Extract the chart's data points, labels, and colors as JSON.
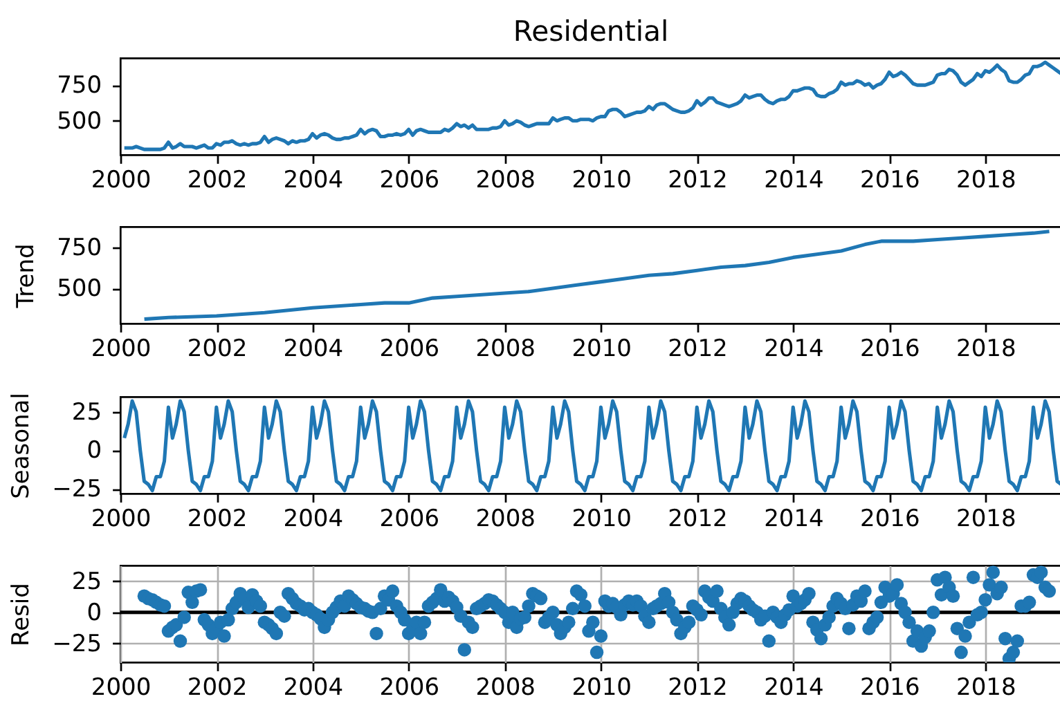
{
  "chart_data": [
    {
      "type": "line",
      "title": "Residential",
      "color": "#1f77b4",
      "xlim": [
        "2000-01-01",
        "2019-08-01"
      ],
      "xticks": [
        "2000",
        "2002",
        "2004",
        "2006",
        "2008",
        "2010",
        "2012",
        "2014",
        "2016",
        "2018"
      ],
      "ylim": [
        262,
        939
      ],
      "yticks": [
        500,
        750
      ],
      "x": [
        "2000-01-31",
        "2000-02-29",
        "2000-03-31",
        "2000-04-30",
        "2000-05-31",
        "2000-06-30",
        "2000-07-31",
        "2000-08-31",
        "2000-09-30",
        "2000-10-31",
        "2000-11-30",
        "2000-12-31",
        "2001-01-31",
        "2001-02-28",
        "2001-03-31",
        "2001-04-30",
        "2001-05-31",
        "2001-06-30",
        "2001-07-31",
        "2001-08-31",
        "2001-09-30",
        "2001-10-31",
        "2001-11-30",
        "2001-12-31",
        "2002-01-31",
        "2002-02-28",
        "2002-03-31",
        "2002-04-30",
        "2002-05-31",
        "2002-06-30",
        "2002-07-31",
        "2002-08-31",
        "2002-09-30",
        "2002-10-31",
        "2002-11-30",
        "2002-12-31",
        "2003-01-31",
        "2003-02-28",
        "2003-03-31",
        "2003-04-30",
        "2003-05-31",
        "2003-06-30",
        "2003-07-31",
        "2003-08-31",
        "2003-09-30",
        "2003-10-31",
        "2003-11-30",
        "2003-12-31",
        "2004-01-31",
        "2004-02-29",
        "2004-03-31",
        "2004-04-30",
        "2004-05-31",
        "2004-06-30",
        "2004-07-31",
        "2004-08-31",
        "2004-09-30",
        "2004-10-31",
        "2004-11-30",
        "2004-12-31",
        "2005-01-31",
        "2005-02-28",
        "2005-03-31",
        "2005-04-30",
        "2005-05-31",
        "2005-06-30",
        "2005-07-31",
        "2005-08-31",
        "2005-09-30",
        "2005-10-31",
        "2005-11-30",
        "2005-12-31",
        "2006-01-31",
        "2006-02-28",
        "2006-03-31",
        "2006-04-30",
        "2006-05-31",
        "2006-06-30",
        "2006-07-31",
        "2006-08-31",
        "2006-09-30",
        "2006-10-31",
        "2006-11-30",
        "2006-12-31",
        "2007-01-31",
        "2007-02-28",
        "2007-03-31",
        "2007-04-30",
        "2007-05-31",
        "2007-06-30",
        "2007-07-31",
        "2007-08-31",
        "2007-09-30",
        "2007-10-31",
        "2007-11-30",
        "2007-12-31",
        "2008-01-31",
        "2008-02-29",
        "2008-03-31",
        "2008-04-30",
        "2008-05-31",
        "2008-06-30",
        "2008-07-31",
        "2008-08-31",
        "2008-09-30",
        "2008-10-31",
        "2008-11-30",
        "2008-12-31",
        "2009-01-31",
        "2009-02-28",
        "2009-03-31",
        "2009-04-30",
        "2009-05-31",
        "2009-06-30",
        "2009-07-31",
        "2009-08-31",
        "2009-09-30",
        "2009-10-31",
        "2009-11-30",
        "2009-12-31",
        "2010-01-31",
        "2010-02-28",
        "2010-03-31",
        "2010-04-30",
        "2010-05-31",
        "2010-06-30",
        "2010-07-31",
        "2010-08-31",
        "2010-09-30",
        "2010-10-31",
        "2010-11-30",
        "2010-12-31",
        "2011-01-31",
        "2011-02-28",
        "2011-03-31",
        "2011-04-30",
        "2011-05-31",
        "2011-06-30",
        "2011-07-31",
        "2011-08-31",
        "2011-09-30",
        "2011-10-31",
        "2011-11-30",
        "2011-12-31",
        "2012-01-31",
        "2012-02-29",
        "2012-03-31",
        "2012-04-30",
        "2012-05-31",
        "2012-06-30",
        "2012-07-31",
        "2012-08-31",
        "2012-09-30",
        "2012-10-31",
        "2012-11-30",
        "2012-12-31",
        "2013-01-31",
        "2013-02-28",
        "2013-03-31",
        "2013-04-30",
        "2013-05-31",
        "2013-06-30",
        "2013-07-31",
        "2013-08-31",
        "2013-09-30",
        "2013-10-31",
        "2013-11-30",
        "2013-12-31",
        "2014-01-31",
        "2014-02-28",
        "2014-03-31",
        "2014-04-30",
        "2014-05-31",
        "2014-06-30",
        "2014-07-31",
        "2014-08-31",
        "2014-09-30",
        "2014-10-31",
        "2014-11-30",
        "2014-12-31",
        "2015-01-31",
        "2015-02-28",
        "2015-03-31",
        "2015-04-30",
        "2015-05-31",
        "2015-06-30",
        "2015-07-31",
        "2015-08-31",
        "2015-09-30",
        "2015-10-31",
        "2015-11-30",
        "2015-12-31",
        "2016-01-31",
        "2016-02-29",
        "2016-03-31",
        "2016-04-30",
        "2016-05-31",
        "2016-06-30",
        "2016-07-31",
        "2016-08-31",
        "2016-09-30",
        "2016-10-31",
        "2016-11-30",
        "2016-12-31",
        "2017-01-31",
        "2017-02-28",
        "2017-03-31",
        "2017-04-30",
        "2017-05-31",
        "2017-06-30",
        "2017-07-31",
        "2017-08-31",
        "2017-09-30",
        "2017-10-31",
        "2017-11-30",
        "2017-12-31",
        "2018-01-31",
        "2018-02-28",
        "2018-03-31",
        "2018-04-30",
        "2018-05-31",
        "2018-06-30",
        "2018-07-31",
        "2018-08-31",
        "2018-09-30",
        "2018-10-31",
        "2018-11-30",
        "2018-12-31",
        "2019-01-31",
        "2019-02-28",
        "2019-03-31",
        "2019-04-30",
        "2019-05-31",
        "2019-06-30",
        "2019-07-31"
      ],
      "values": [
        310,
        310,
        310,
        320,
        310,
        300,
        300,
        300,
        300,
        300,
        310,
        350,
        310,
        320,
        340,
        320,
        320,
        320,
        310,
        320,
        330,
        310,
        310,
        340,
        330,
        350,
        350,
        360,
        340,
        330,
        340,
        330,
        340,
        340,
        350,
        390,
        350,
        370,
        380,
        370,
        360,
        340,
        360,
        350,
        360,
        360,
        370,
        410,
        380,
        400,
        410,
        400,
        380,
        370,
        370,
        380,
        380,
        390,
        400,
        440,
        410,
        430,
        440,
        430,
        390,
        390,
        400,
        400,
        410,
        400,
        410,
        440,
        400,
        430,
        440,
        430,
        420,
        420,
        420,
        420,
        440,
        430,
        450,
        480,
        460,
        470,
        450,
        470,
        440,
        440,
        440,
        440,
        450,
        450,
        460,
        500,
        470,
        480,
        500,
        490,
        470,
        460,
        470,
        480,
        480,
        480,
        480,
        520,
        500,
        510,
        520,
        520,
        500,
        500,
        510,
        510,
        510,
        500,
        520,
        530,
        530,
        570,
        580,
        580,
        560,
        530,
        540,
        550,
        560,
        560,
        570,
        600,
        580,
        610,
        620,
        620,
        600,
        580,
        570,
        560,
        560,
        570,
        590,
        640,
        610,
        630,
        660,
        660,
        630,
        620,
        610,
        600,
        610,
        620,
        640,
        680,
        660,
        670,
        680,
        680,
        650,
        630,
        620,
        640,
        650,
        650,
        670,
        710,
        710,
        720,
        730,
        730,
        720,
        680,
        670,
        670,
        690,
        700,
        720,
        770,
        750,
        760,
        760,
        780,
        770,
        750,
        760,
        730,
        750,
        760,
        790,
        840,
        810,
        820,
        840,
        820,
        790,
        760,
        750,
        750,
        750,
        760,
        770,
        820,
        830,
        830,
        860,
        850,
        820,
        770,
        750,
        770,
        790,
        830,
        810,
        850,
        840,
        860,
        890,
        860,
        840,
        780,
        770,
        770,
        790,
        820,
        830,
        880,
        880,
        890,
        910,
        890,
        870,
        850,
        830
      ]
    },
    {
      "type": "line",
      "ylabel": "Trend",
      "color": "#1f77b4",
      "xlim": [
        "2000-01-01",
        "2019-08-01"
      ],
      "xticks": [
        "2000",
        "2002",
        "2004",
        "2006",
        "2008",
        "2010",
        "2012",
        "2014",
        "2016",
        "2018"
      ],
      "ylim": [
        283,
        879
      ],
      "yticks": [
        500,
        750
      ],
      "x": [
        "2000-07",
        "2001-01",
        "2002-01",
        "2003-01",
        "2004-01",
        "2005-01",
        "2005-07",
        "2006-01",
        "2006-07",
        "2007-01",
        "2008-01",
        "2008-07",
        "2009-01",
        "2009-07",
        "2010-01",
        "2010-07",
        "2011-01",
        "2011-07",
        "2012-01",
        "2012-07",
        "2013-01",
        "2013-07",
        "2014-01",
        "2014-07",
        "2015-01",
        "2015-07",
        "2015-11",
        "2016-07",
        "2017-01",
        "2017-07",
        "2018-01",
        "2018-07",
        "2019-01",
        "2019-05"
      ],
      "values": [
        310,
        320,
        330,
        350,
        380,
        400,
        410,
        410,
        440,
        450,
        470,
        480,
        500,
        520,
        540,
        560,
        580,
        590,
        610,
        630,
        640,
        660,
        690,
        710,
        730,
        770,
        790,
        790,
        800,
        810,
        820,
        830,
        840,
        850
      ]
    },
    {
      "type": "line",
      "ylabel": "Seasonal",
      "color": "#1f77b4",
      "xlim": [
        "2000-01-01",
        "2019-08-01"
      ],
      "xticks": [
        "2000",
        "2002",
        "2004",
        "2006",
        "2008",
        "2010",
        "2012",
        "2014",
        "2016",
        "2018"
      ],
      "ylim": [
        -28,
        34.7
      ],
      "yticks": [
        {
          "value": -25,
          "label": "−25"
        },
        0,
        25
      ],
      "x": [
        "2000-01-31",
        "2000-02-29",
        "2000-03-31",
        "2000-04-30",
        "2000-05-31",
        "2000-06-30",
        "2000-07-31",
        "2000-08-31",
        "2000-09-30",
        "2000-10-31",
        "2000-11-30",
        "2000-12-31",
        "2001-01-31",
        "2001-02-28",
        "2001-03-31",
        "2001-04-30",
        "2001-05-31",
        "2001-06-30",
        "2001-07-31",
        "2001-08-31",
        "2001-09-30",
        "2001-10-31",
        "2001-11-30",
        "2001-12-31",
        "2002-01-31",
        "2002-02-28",
        "2002-03-31",
        "2002-04-30",
        "2002-05-31",
        "2002-06-30",
        "2002-07-31",
        "2002-08-31",
        "2002-09-30",
        "2002-10-31",
        "2002-11-30",
        "2002-12-31",
        "2003-01-31",
        "2003-02-28",
        "2003-03-31",
        "2003-04-30",
        "2003-05-31",
        "2003-06-30",
        "2003-07-31",
        "2003-08-31",
        "2003-09-30",
        "2003-10-31",
        "2003-11-30",
        "2003-12-31",
        "2004-01-31",
        "2004-02-29",
        "2004-03-31",
        "2004-04-30",
        "2004-05-31",
        "2004-06-30",
        "2004-07-31",
        "2004-08-31",
        "2004-09-30",
        "2004-10-31",
        "2004-11-30",
        "2004-12-31",
        "2005-01-31",
        "2005-02-28",
        "2005-03-31",
        "2005-04-30",
        "2005-05-31",
        "2005-06-30",
        "2005-07-31",
        "2005-08-31",
        "2005-09-30",
        "2005-10-31",
        "2005-11-30",
        "2005-12-31",
        "2006-01-31",
        "2006-02-28",
        "2006-03-31",
        "2006-04-30",
        "2006-05-31",
        "2006-06-30",
        "2006-07-31",
        "2006-08-31",
        "2006-09-30",
        "2006-10-31",
        "2006-11-30",
        "2006-12-31",
        "2007-01-31",
        "2007-02-28",
        "2007-03-31",
        "2007-04-30",
        "2007-05-31",
        "2007-06-30",
        "2007-07-31",
        "2007-08-31",
        "2007-09-30",
        "2007-10-31",
        "2007-11-30",
        "2007-12-31",
        "2008-01-31",
        "2008-02-29",
        "2008-03-31",
        "2008-04-30",
        "2008-05-31",
        "2008-06-30",
        "2008-07-31",
        "2008-08-31",
        "2008-09-30",
        "2008-10-31",
        "2008-11-30",
        "2008-12-31",
        "2009-01-31",
        "2009-02-28",
        "2009-03-31",
        "2009-04-30",
        "2009-05-31",
        "2009-06-30",
        "2009-07-31",
        "2009-08-31",
        "2009-09-30",
        "2009-10-31",
        "2009-11-30",
        "2009-12-31",
        "2010-01-31",
        "2010-02-28",
        "2010-03-31",
        "2010-04-30",
        "2010-05-31",
        "2010-06-30",
        "2010-07-31",
        "2010-08-31",
        "2010-09-30",
        "2010-10-31",
        "2010-11-30",
        "2010-12-31",
        "2011-01-31",
        "2011-02-28",
        "2011-03-31",
        "2011-04-30",
        "2011-05-31",
        "2011-06-30",
        "2011-07-31",
        "2011-08-31",
        "2011-09-30",
        "2011-10-31",
        "2011-11-30",
        "2011-12-31",
        "2012-01-31",
        "2012-02-29",
        "2012-03-31",
        "2012-04-30",
        "2012-05-31",
        "2012-06-30",
        "2012-07-31",
        "2012-08-31",
        "2012-09-30",
        "2012-10-31",
        "2012-11-30",
        "2012-12-31",
        "2013-01-31",
        "2013-02-28",
        "2013-03-31",
        "2013-04-30",
        "2013-05-31",
        "2013-06-30",
        "2013-07-31",
        "2013-08-31",
        "2013-09-30",
        "2013-10-31",
        "2013-11-30",
        "2013-12-31",
        "2014-01-31",
        "2014-02-28",
        "2014-03-31",
        "2014-04-30",
        "2014-05-31",
        "2014-06-30",
        "2014-07-31",
        "2014-08-31",
        "2014-09-30",
        "2014-10-31",
        "2014-11-30",
        "2014-12-31",
        "2015-01-31",
        "2015-02-28",
        "2015-03-31",
        "2015-04-30",
        "2015-05-31",
        "2015-06-30",
        "2015-07-31",
        "2015-08-31",
        "2015-09-30",
        "2015-10-31",
        "2015-11-30",
        "2015-12-31",
        "2016-01-31",
        "2016-02-29",
        "2016-03-31",
        "2016-04-30",
        "2016-05-31",
        "2016-06-30",
        "2016-07-31",
        "2016-08-31",
        "2016-09-30",
        "2016-10-31",
        "2016-11-30",
        "2016-12-31",
        "2017-01-31",
        "2017-02-28",
        "2017-03-31",
        "2017-04-30",
        "2017-05-31",
        "2017-06-30",
        "2017-07-31",
        "2017-08-31",
        "2017-09-30",
        "2017-10-31",
        "2017-11-30",
        "2017-12-31",
        "2018-01-31",
        "2018-02-28",
        "2018-03-31",
        "2018-04-30",
        "2018-05-31",
        "2018-06-30",
        "2018-07-31",
        "2018-08-31",
        "2018-09-30",
        "2018-10-31",
        "2018-11-30",
        "2018-12-31",
        "2019-01-31",
        "2019-02-28",
        "2019-03-31",
        "2019-04-30",
        "2019-05-31",
        "2019-06-30",
        "2019-07-31"
      ],
      "values": [
        8,
        17,
        32,
        25,
        0,
        -20,
        -22,
        -26,
        -17,
        -17,
        -7,
        28,
        8,
        17,
        32,
        25,
        0,
        -20,
        -22,
        -26,
        -17,
        -17,
        -7,
        28,
        8,
        17,
        32,
        25,
        0,
        -20,
        -22,
        -26,
        -17,
        -17,
        -7,
        28,
        8,
        17,
        32,
        25,
        0,
        -20,
        -22,
        -26,
        -17,
        -17,
        -7,
        28,
        8,
        17,
        32,
        25,
        0,
        -20,
        -22,
        -26,
        -17,
        -17,
        -7,
        28,
        8,
        17,
        32,
        25,
        0,
        -20,
        -22,
        -26,
        -17,
        -17,
        -7,
        28,
        8,
        17,
        32,
        25,
        0,
        -20,
        -22,
        -26,
        -17,
        -17,
        -7,
        28,
        8,
        17,
        32,
        25,
        0,
        -20,
        -22,
        -26,
        -17,
        -17,
        -7,
        28,
        8,
        17,
        32,
        25,
        0,
        -20,
        -22,
        -26,
        -17,
        -17,
        -7,
        28,
        8,
        17,
        32,
        25,
        0,
        -20,
        -22,
        -26,
        -17,
        -17,
        -7,
        28,
        8,
        17,
        32,
        25,
        0,
        -20,
        -22,
        -26,
        -17,
        -17,
        -7,
        28,
        8,
        17,
        32,
        25,
        0,
        -20,
        -22,
        -26,
        -17,
        -17,
        -7,
        28,
        8,
        17,
        32,
        25,
        0,
        -20,
        -22,
        -26,
        -17,
        -17,
        -7,
        28,
        8,
        17,
        32,
        25,
        0,
        -20,
        -22,
        -26,
        -17,
        -17,
        -7,
        28,
        8,
        17,
        32,
        25,
        0,
        -20,
        -22,
        -26,
        -17,
        -17,
        -7,
        28,
        8,
        17,
        32,
        25,
        0,
        -20,
        -22,
        -26,
        -17,
        -17,
        -7,
        28,
        8,
        17,
        32,
        25,
        0,
        -20,
        -22,
        -26,
        -17,
        -17,
        -7,
        28,
        8,
        17,
        32,
        25,
        0,
        -20,
        -22,
        -26,
        -17,
        -17,
        -7,
        28,
        8,
        17,
        32,
        25,
        0,
        -20,
        -22,
        -26,
        -17,
        -17,
        -7,
        28,
        8,
        17,
        32,
        25,
        0,
        -20,
        -22
      ]
    },
    {
      "type": "scatter",
      "ylabel": "Resid",
      "color": "#1f77b4",
      "marker": "circle",
      "grid": true,
      "xlim": [
        "2000-01-01",
        "2019-08-01"
      ],
      "xticks": [
        "2000",
        "2002",
        "2004",
        "2006",
        "2008",
        "2010",
        "2012",
        "2014",
        "2016",
        "2018"
      ],
      "ylim": [
        -40,
        37.5
      ],
      "yticks": [
        {
          "value": -25,
          "label": "−25"
        },
        0,
        25
      ],
      "ref_lines": [
        {
          "axis": "y",
          "value": 0,
          "color": "#000000"
        }
      ],
      "x": [
        "2000-06-30",
        "2000-07-31",
        "2000-08-31",
        "2000-09-30",
        "2000-10-31",
        "2000-11-30",
        "2000-12-31",
        "2001-01-31",
        "2001-02-28",
        "2001-03-31",
        "2001-04-30",
        "2001-05-31",
        "2001-06-30",
        "2001-07-31",
        "2001-08-31",
        "2001-09-30",
        "2001-10-31",
        "2001-11-30",
        "2001-12-31",
        "2002-01-31",
        "2002-02-28",
        "2002-03-31",
        "2002-04-30",
        "2002-05-31",
        "2002-06-30",
        "2002-07-31",
        "2002-08-31",
        "2002-09-30",
        "2002-10-31",
        "2002-11-30",
        "2002-12-31",
        "2003-01-31",
        "2003-02-28",
        "2003-03-31",
        "2003-04-30",
        "2003-05-31",
        "2003-06-30",
        "2003-07-31",
        "2003-08-31",
        "2003-09-30",
        "2003-10-31",
        "2003-11-30",
        "2003-12-31",
        "2004-01-31",
        "2004-02-29",
        "2004-03-31",
        "2004-04-30",
        "2004-05-31",
        "2004-06-30",
        "2004-07-31",
        "2004-08-31",
        "2004-09-30",
        "2004-10-31",
        "2004-11-30",
        "2004-12-31",
        "2005-01-31",
        "2005-02-28",
        "2005-03-31",
        "2005-04-30",
        "2005-05-31",
        "2005-06-30",
        "2005-07-31",
        "2005-08-31",
        "2005-09-30",
        "2005-10-31",
        "2005-11-30",
        "2005-12-31",
        "2006-01-31",
        "2006-02-28",
        "2006-03-31",
        "2006-04-30",
        "2006-05-31",
        "2006-06-30",
        "2006-07-31",
        "2006-08-31",
        "2006-09-30",
        "2006-10-31",
        "2006-11-30",
        "2006-12-31",
        "2007-01-31",
        "2007-02-28",
        "2007-03-31",
        "2007-04-30",
        "2007-05-31",
        "2007-06-30",
        "2007-07-31",
        "2007-08-31",
        "2007-09-30",
        "2007-10-31",
        "2007-11-30",
        "2007-12-31",
        "2008-01-31",
        "2008-02-29",
        "2008-03-31",
        "2008-04-30",
        "2008-05-31",
        "2008-06-30",
        "2008-07-31",
        "2008-08-31",
        "2008-09-30",
        "2008-10-31",
        "2008-11-30",
        "2008-12-31",
        "2009-01-31",
        "2009-02-28",
        "2009-03-31",
        "2009-04-30",
        "2009-05-31",
        "2009-06-30",
        "2009-07-31",
        "2009-08-31",
        "2009-09-30",
        "2009-10-31",
        "2009-11-30",
        "2009-12-31",
        "2010-01-31",
        "2010-02-28",
        "2010-03-31",
        "2010-04-30",
        "2010-05-31",
        "2010-06-30",
        "2010-07-31",
        "2010-08-31",
        "2010-09-30",
        "2010-10-31",
        "2010-11-30",
        "2010-12-31",
        "2011-01-31",
        "2011-02-28",
        "2011-03-31",
        "2011-04-30",
        "2011-05-31",
        "2011-06-30",
        "2011-07-31",
        "2011-08-31",
        "2011-09-30",
        "2011-10-31",
        "2011-11-30",
        "2011-12-31",
        "2012-01-31",
        "2012-02-29",
        "2012-03-31",
        "2012-04-30",
        "2012-05-31",
        "2012-06-30",
        "2012-07-31",
        "2012-08-31",
        "2012-09-30",
        "2012-10-31",
        "2012-11-30",
        "2012-12-31",
        "2013-01-31",
        "2013-02-28",
        "2013-03-31",
        "2013-04-30",
        "2013-05-31",
        "2013-06-30",
        "2013-07-31",
        "2013-08-31",
        "2013-09-30",
        "2013-10-31",
        "2013-11-30",
        "2013-12-31",
        "2014-01-31",
        "2014-02-28",
        "2014-03-31",
        "2014-04-30",
        "2014-05-31",
        "2014-06-30",
        "2014-07-31",
        "2014-08-31",
        "2014-09-30",
        "2014-10-31",
        "2014-11-30",
        "2014-12-31",
        "2015-01-31",
        "2015-02-28",
        "2015-03-31",
        "2015-04-30",
        "2015-05-31",
        "2015-06-30",
        "2015-07-31",
        "2015-08-31",
        "2015-09-30",
        "2015-10-31",
        "2015-11-30",
        "2015-12-31",
        "2016-01-31",
        "2016-02-29",
        "2016-03-31",
        "2016-04-30",
        "2016-05-31",
        "2016-06-30",
        "2016-07-31",
        "2016-08-31",
        "2016-09-30",
        "2016-10-31",
        "2016-11-30",
        "2016-12-31",
        "2017-01-31",
        "2017-02-28",
        "2017-03-31",
        "2017-04-30",
        "2017-05-31",
        "2017-06-30",
        "2017-07-31",
        "2017-08-31",
        "2017-09-30",
        "2017-10-31",
        "2017-11-30",
        "2017-12-31",
        "2018-01-31",
        "2018-02-28",
        "2018-03-31",
        "2018-04-30",
        "2018-05-31",
        "2018-06-30",
        "2018-07-31",
        "2018-08-31",
        "2018-09-30",
        "2018-10-31",
        "2018-11-30",
        "2018-12-31",
        "2019-01-31",
        "2019-02-28",
        "2019-03-31",
        "2019-04-30"
      ],
      "values": [
        13,
        11,
        10,
        8,
        6,
        5,
        -15,
        -12,
        -10,
        -23,
        -4,
        16,
        8,
        17,
        18,
        -6,
        -10,
        -17,
        -13,
        -8,
        -19,
        -6,
        3,
        8,
        15,
        11,
        4,
        14,
        9,
        5,
        -8,
        -10,
        -13,
        -17,
        0,
        -3,
        15,
        11,
        7,
        5,
        2,
        3,
        0,
        -2,
        -5,
        -12,
        -6,
        0,
        4,
        9,
        5,
        13,
        10,
        7,
        4,
        3,
        1,
        0,
        -17,
        3,
        13,
        10,
        17,
        5,
        0,
        -6,
        -17,
        -13,
        -8,
        -17,
        -8,
        5,
        8,
        11,
        18,
        9,
        12,
        9,
        4,
        -3,
        -30,
        -8,
        -12,
        3,
        5,
        7,
        10,
        9,
        6,
        3,
        0,
        -8,
        0,
        -12,
        -5,
        -4,
        5,
        15,
        13,
        11,
        -8,
        -4,
        0,
        -10,
        -17,
        -12,
        -8,
        3,
        17,
        14,
        5,
        -15,
        -8,
        -32,
        -19,
        9,
        5,
        7,
        4,
        -2,
        6,
        9,
        6,
        9,
        5,
        -3,
        -8,
        3,
        5,
        7,
        15,
        8,
        0,
        -6,
        -17,
        -12,
        -8,
        5,
        2,
        -2,
        17,
        12,
        9,
        17,
        3,
        -4,
        -10,
        0,
        7,
        11,
        9,
        5,
        2,
        0,
        -6,
        -3,
        -23,
        0,
        -4,
        -8,
        -2,
        2,
        13,
        5,
        7,
        10,
        15,
        -8,
        -14,
        -21,
        -10,
        -4,
        5,
        11,
        7,
        3,
        -13,
        6,
        13,
        9,
        17,
        -13,
        -8,
        -4,
        8,
        20,
        13,
        15,
        22,
        7,
        0,
        -8,
        -23,
        -15,
        -27,
        -20,
        -15,
        0,
        26,
        14,
        28,
        20,
        13,
        -13,
        -32,
        -19,
        -8,
        28,
        -2,
        0,
        10,
        22,
        32,
        15,
        20,
        -21,
        -37,
        -32,
        -23,
        5,
        5,
        8,
        30,
        28,
        32,
        20,
        17
      ]
    }
  ]
}
